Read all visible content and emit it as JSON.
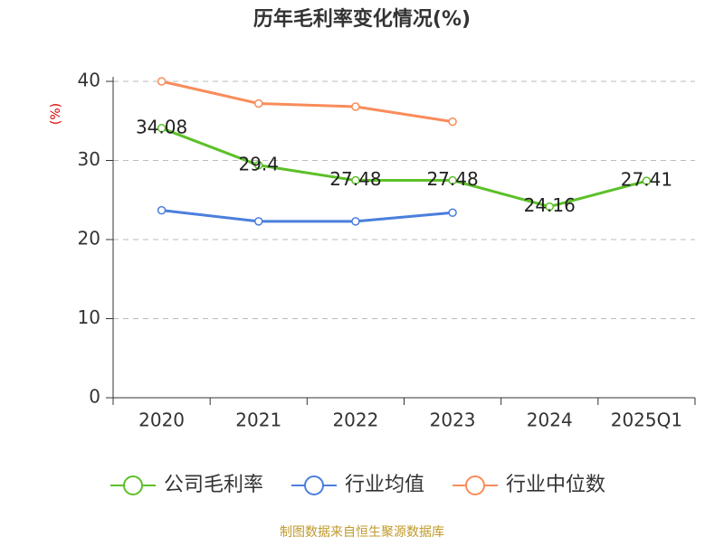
{
  "chart_data": {
    "type": "line",
    "title": "历年毛利率变化情况(%)",
    "y_label": "(%)",
    "categories": [
      "2020",
      "2021",
      "2022",
      "2023",
      "2024",
      "2025Q1"
    ],
    "series": [
      {
        "name": "公司毛利率",
        "color": "#5cc028",
        "values": [
          34.08,
          29.4,
          27.48,
          27.48,
          24.16,
          27.41
        ],
        "show_labels": true
      },
      {
        "name": "行业均值",
        "color": "#4a7fdc",
        "values": [
          23.7,
          22.3,
          22.3,
          23.4,
          null,
          null
        ]
      },
      {
        "name": "行业中位数",
        "color": "#f98c5a",
        "values": [
          40.0,
          37.2,
          36.8,
          34.9,
          null,
          null
        ]
      }
    ],
    "ylim": [
      0,
      40
    ],
    "yticks": [
      0,
      10,
      20,
      30,
      40
    ],
    "grid": true,
    "source": "制图数据来自恒生聚源数据库"
  }
}
